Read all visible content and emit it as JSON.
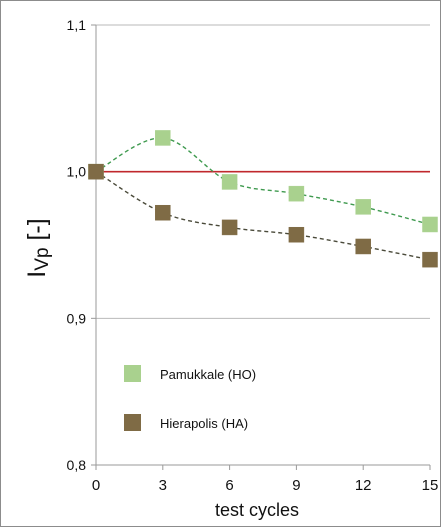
{
  "chart_data": {
    "type": "scatter",
    "title": "",
    "xlabel": "test cycles",
    "ylabel_main": "I",
    "ylabel_sub": "Vp",
    "ylabel_unit": " [-]",
    "x": [
      0,
      3,
      6,
      9,
      12,
      15
    ],
    "x_ticks": [
      "0",
      "3",
      "6",
      "9",
      "12",
      "15"
    ],
    "xlim": [
      0,
      15
    ],
    "ylim": [
      0.8,
      1.1
    ],
    "y_ticks": [
      {
        "value": 0.8,
        "label": "0,8"
      },
      {
        "value": 0.9,
        "label": "0,9"
      },
      {
        "value": 1.0,
        "label": "1,0"
      },
      {
        "value": 1.1,
        "label": "1,1"
      }
    ],
    "grid": true,
    "reference_line": {
      "value": 1.0,
      "color": "#c0282d"
    },
    "legend_position": "bottom-left",
    "series": [
      {
        "name": "Pamukkale (HO)",
        "marker_color": "#a9d18e",
        "trend_color": "#3f9a4f",
        "values": [
          1.0,
          1.023,
          0.993,
          0.985,
          0.976,
          0.964
        ]
      },
      {
        "name": "Hierapolis (HA)",
        "marker_color": "#7f6b45",
        "trend_color": "#4a4a3a",
        "values": [
          1.0,
          0.972,
          0.962,
          0.957,
          0.949,
          0.94
        ]
      }
    ]
  }
}
